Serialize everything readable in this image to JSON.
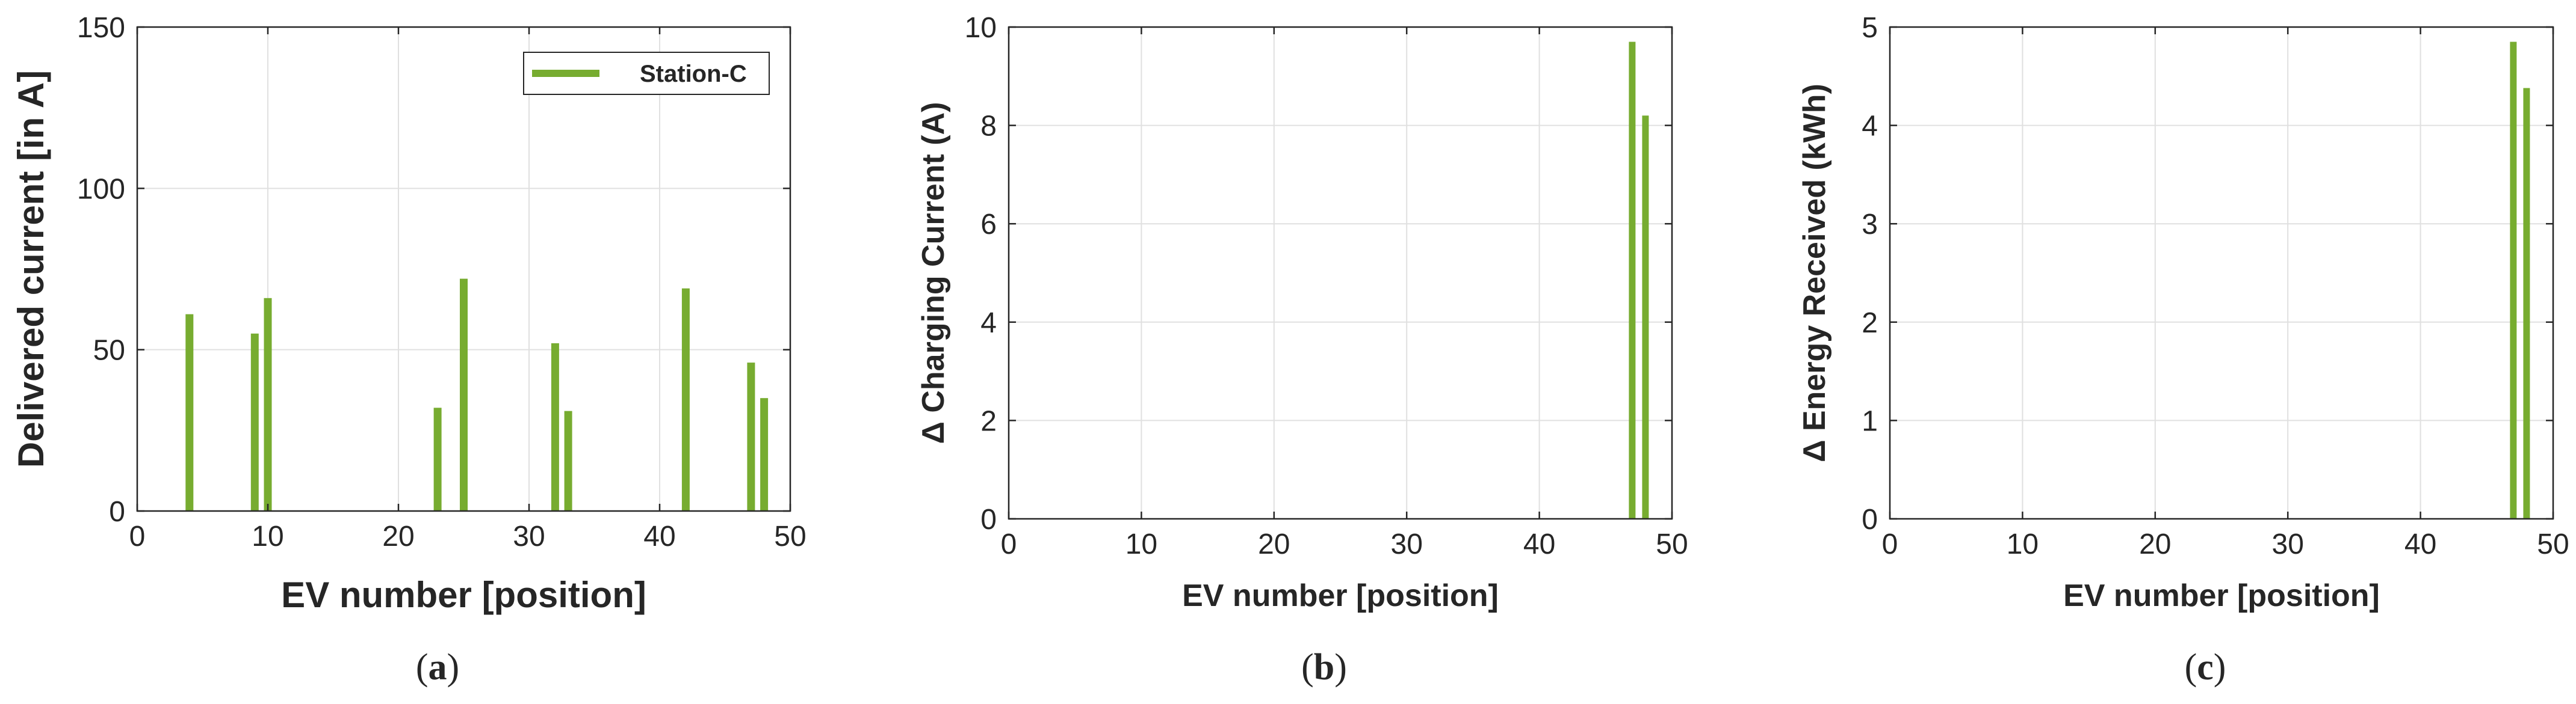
{
  "colors": {
    "bar": "#77AC30",
    "grid": "#e0e0e0",
    "axis": "#262626",
    "background": "#ffffff"
  },
  "chart_data": [
    {
      "type": "bar",
      "panel": "a",
      "caption": "a",
      "title": "",
      "xlabel": "EV number [position]",
      "ylabel": "Delivered current [in A]",
      "xlim": [
        0,
        50
      ],
      "ylim": [
        0,
        150
      ],
      "xticks": [
        0,
        10,
        20,
        30,
        40,
        50
      ],
      "yticks": [
        0,
        50,
        100,
        150
      ],
      "grid": true,
      "legend": {
        "position": "top-right",
        "entries": [
          "Station-C"
        ]
      },
      "series": [
        {
          "name": "Station-C",
          "x": [
            4,
            9,
            10,
            23,
            25,
            32,
            33,
            42,
            47,
            48
          ],
          "values": [
            61,
            55,
            66,
            32,
            72,
            52,
            31,
            69,
            46,
            35
          ]
        }
      ]
    },
    {
      "type": "bar",
      "panel": "b",
      "caption": "b",
      "title": "",
      "xlabel": "EV number [position]",
      "ylabel": "Δ Charging Current (A)",
      "xlim": [
        0,
        50
      ],
      "ylim": [
        0,
        10
      ],
      "xticks": [
        0,
        10,
        20,
        30,
        40,
        50
      ],
      "yticks": [
        0,
        2,
        4,
        6,
        8,
        10
      ],
      "grid": true,
      "series": [
        {
          "x": [
            47,
            48
          ],
          "values": [
            9.7,
            8.2
          ]
        }
      ]
    },
    {
      "type": "bar",
      "panel": "c",
      "caption": "c",
      "title": "",
      "xlabel": "EV number [position]",
      "ylabel": "Δ Energy Received (kWh)",
      "xlim": [
        0,
        50
      ],
      "ylim": [
        0,
        5
      ],
      "xticks": [
        0,
        10,
        20,
        30,
        40,
        50
      ],
      "yticks": [
        0,
        1,
        2,
        3,
        4,
        5
      ],
      "grid": true,
      "series": [
        {
          "x": [
            47,
            48
          ],
          "values": [
            4.85,
            4.38
          ]
        }
      ]
    }
  ]
}
